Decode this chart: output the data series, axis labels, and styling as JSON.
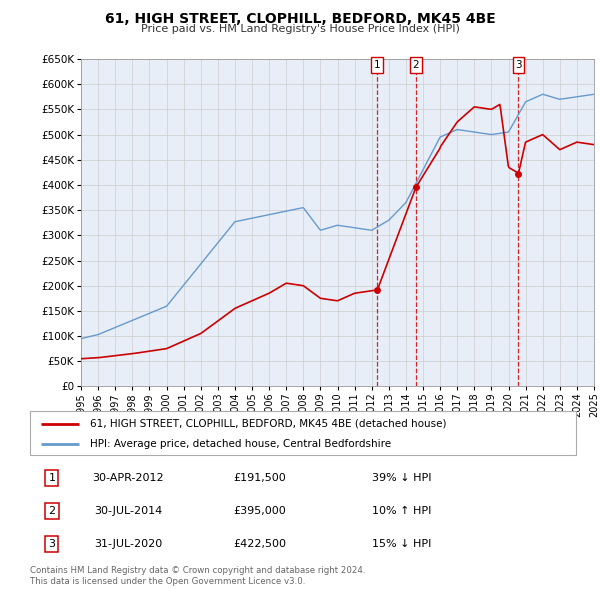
{
  "title": "61, HIGH STREET, CLOPHILL, BEDFORD, MK45 4BE",
  "subtitle": "Price paid vs. HM Land Registry's House Price Index (HPI)",
  "legend_line1": "61, HIGH STREET, CLOPHILL, BEDFORD, MK45 4BE (detached house)",
  "legend_line2": "HPI: Average price, detached house, Central Bedfordshire",
  "transactions": [
    {
      "num": 1,
      "date": "30-APR-2012",
      "price": "£191,500",
      "pct": "39%",
      "dir": "↓",
      "year": 2012.33
    },
    {
      "num": 2,
      "date": "30-JUL-2014",
      "price": "£395,000",
      "pct": "10%",
      "dir": "↑",
      "year": 2014.58
    },
    {
      "num": 3,
      "date": "31-JUL-2020",
      "price": "£422,500",
      "pct": "15%",
      "dir": "↓",
      "year": 2020.58
    }
  ],
  "transaction_marker_values": [
    191500,
    395000,
    422500
  ],
  "transaction_years": [
    2012.33,
    2014.58,
    2020.58
  ],
  "ylim": [
    0,
    650000
  ],
  "yticks": [
    0,
    50000,
    100000,
    150000,
    200000,
    250000,
    300000,
    350000,
    400000,
    450000,
    500000,
    550000,
    600000,
    650000
  ],
  "xlim_start": 1995,
  "xlim_end": 2025,
  "xticks": [
    1995,
    1996,
    1997,
    1998,
    1999,
    2000,
    2001,
    2002,
    2003,
    2004,
    2005,
    2006,
    2007,
    2008,
    2009,
    2010,
    2011,
    2012,
    2013,
    2014,
    2015,
    2016,
    2017,
    2018,
    2019,
    2020,
    2021,
    2022,
    2023,
    2024,
    2025
  ],
  "red_color": "#cc0000",
  "blue_color": "#6699cc",
  "grid_color": "#cccccc",
  "bg_color": "#e8eef8",
  "plot_bg": "#ffffff",
  "footnote1": "Contains HM Land Registry data © Crown copyright and database right 2024.",
  "footnote2": "This data is licensed under the Open Government Licence v3.0."
}
